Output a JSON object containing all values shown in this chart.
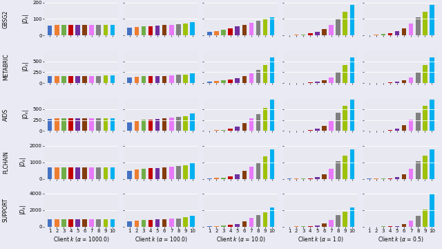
{
  "datasets": [
    "GBSG2",
    "METABRIC",
    "AIDS",
    "FLCHAIN",
    "SUPPORT"
  ],
  "alphas": [
    "1000.0",
    "100.0",
    "10.0",
    "1.0",
    "0.5"
  ],
  "alpha_display": [
    "1000.0",
    "100.0",
    "10.0",
    "1.0",
    "0.5"
  ],
  "n_clients": 10,
  "bar_colors": [
    "#4472c4",
    "#ed7d31",
    "#70ad47",
    "#c00000",
    "#7030a0",
    "#843c0c",
    "#e879f9",
    "#808080",
    "#9dc209",
    "#00b0f0"
  ],
  "ylims": {
    "GBSG2": [
      0,
      200
    ],
    "METABRIC": [
      0,
      750
    ],
    "AIDS": [
      0,
      750
    ],
    "FLCHAIN": [
      0,
      2000
    ],
    "SUPPORT": [
      0,
      4000
    ]
  },
  "yticks": {
    "GBSG2": [
      0,
      100,
      200
    ],
    "METABRIC": [
      0,
      250,
      500
    ],
    "AIDS": [
      0,
      250,
      500
    ],
    "FLCHAIN": [
      0,
      1000,
      2000
    ],
    "SUPPORT": [
      0,
      2000,
      4000
    ]
  },
  "data": {
    "GBSG2": {
      "1000.0": [
        60,
        62,
        62,
        62,
        62,
        62,
        62,
        62,
        63,
        63
      ],
      "100.0": [
        48,
        52,
        55,
        57,
        60,
        62,
        65,
        68,
        72,
        80
      ],
      "10.0": [
        22,
        28,
        35,
        45,
        55,
        65,
        75,
        88,
        100,
        112
      ],
      "1.0": [
        2,
        4,
        7,
        12,
        22,
        38,
        65,
        100,
        145,
        185
      ],
      "0.5": [
        2,
        4,
        8,
        15,
        25,
        42,
        72,
        112,
        145,
        185
      ]
    },
    "METABRIC": {
      "1000.0": [
        168,
        170,
        170,
        170,
        170,
        170,
        170,
        170,
        171,
        172
      ],
      "100.0": [
        130,
        145,
        155,
        160,
        165,
        170,
        178,
        188,
        200,
        225
      ],
      "10.0": [
        30,
        45,
        65,
        90,
        120,
        165,
        220,
        300,
        420,
        580
      ],
      "1.0": [
        3,
        5,
        8,
        15,
        30,
        65,
        130,
        250,
        420,
        580
      ],
      "0.5": [
        3,
        5,
        8,
        15,
        30,
        65,
        130,
        245,
        420,
        580
      ]
    },
    "AIDS": {
      "1000.0": [
        282,
        285,
        285,
        285,
        285,
        286,
        286,
        286,
        287,
        288
      ],
      "100.0": [
        200,
        230,
        255,
        265,
        275,
        285,
        300,
        315,
        345,
        400
      ],
      "10.0": [
        10,
        18,
        30,
        60,
        100,
        180,
        290,
        390,
        520,
        720
      ],
      "1.0": [
        3,
        5,
        8,
        20,
        50,
        120,
        250,
        420,
        570,
        720
      ],
      "0.5": [
        3,
        5,
        10,
        22,
        55,
        130,
        260,
        420,
        570,
        720
      ]
    },
    "FLCHAIN": {
      "1000.0": [
        695,
        700,
        700,
        700,
        700,
        700,
        700,
        700,
        702,
        705
      ],
      "100.0": [
        480,
        560,
        620,
        645,
        665,
        700,
        730,
        770,
        840,
        980
      ],
      "10.0": [
        25,
        45,
        75,
        140,
        260,
        480,
        730,
        1000,
        1350,
        1800
      ],
      "1.0": [
        5,
        8,
        15,
        35,
        90,
        280,
        620,
        1050,
        1420,
        1800
      ],
      "0.5": [
        5,
        8,
        15,
        35,
        90,
        280,
        620,
        1050,
        1420,
        1800
      ]
    },
    "SUPPORT": {
      "1000.0": [
        890,
        900,
        900,
        900,
        900,
        900,
        900,
        900,
        902,
        910
      ],
      "100.0": [
        620,
        740,
        820,
        845,
        870,
        905,
        950,
        1005,
        1100,
        1280
      ],
      "10.0": [
        35,
        60,
        100,
        185,
        340,
        660,
        1020,
        1380,
        1770,
        2300
      ],
      "1.0": [
        7,
        12,
        20,
        50,
        130,
        390,
        830,
        1380,
        1830,
        2330
      ],
      "0.5": [
        5,
        8,
        12,
        22,
        60,
        280,
        720,
        1340,
        2060,
        3960
      ]
    }
  },
  "figure_bg": "#eaeaf4",
  "axes_bg": "#e8e8f0",
  "tick_fontsize": 5,
  "label_fontsize": 5.5,
  "dataset_fontsize": 5.5
}
